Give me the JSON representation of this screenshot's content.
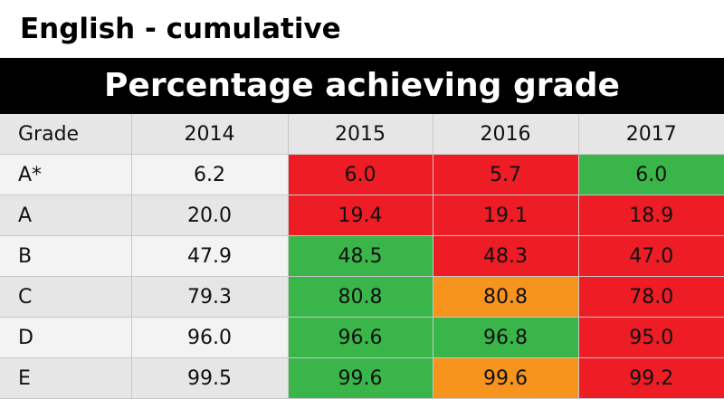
{
  "page_title": "English - cumulative",
  "banner": "Percentage achieving grade",
  "colors": {
    "red": "#ee1c24",
    "green": "#3ab54a",
    "orange": "#f7941e"
  },
  "chart_data": {
    "type": "table",
    "headers": [
      "Grade",
      "2014",
      "2015",
      "2016",
      "2017"
    ],
    "rows": [
      {
        "grade": "A*",
        "values": [
          "6.2",
          "6.0",
          "5.7",
          "6.0"
        ],
        "status": [
          "none",
          "red",
          "red",
          "green"
        ]
      },
      {
        "grade": "A",
        "values": [
          "20.0",
          "19.4",
          "19.1",
          "18.9"
        ],
        "status": [
          "none",
          "red",
          "red",
          "red"
        ]
      },
      {
        "grade": "B",
        "values": [
          "47.9",
          "48.5",
          "48.3",
          "47.0"
        ],
        "status": [
          "none",
          "green",
          "red",
          "red"
        ]
      },
      {
        "grade": "C",
        "values": [
          "79.3",
          "80.8",
          "80.8",
          "78.0"
        ],
        "status": [
          "none",
          "green",
          "orange",
          "red"
        ]
      },
      {
        "grade": "D",
        "values": [
          "96.0",
          "96.6",
          "96.8",
          "95.0"
        ],
        "status": [
          "none",
          "green",
          "green",
          "red"
        ]
      },
      {
        "grade": "E",
        "values": [
          "99.5",
          "99.6",
          "99.6",
          "99.2"
        ],
        "status": [
          "none",
          "green",
          "orange",
          "red"
        ]
      }
    ]
  }
}
